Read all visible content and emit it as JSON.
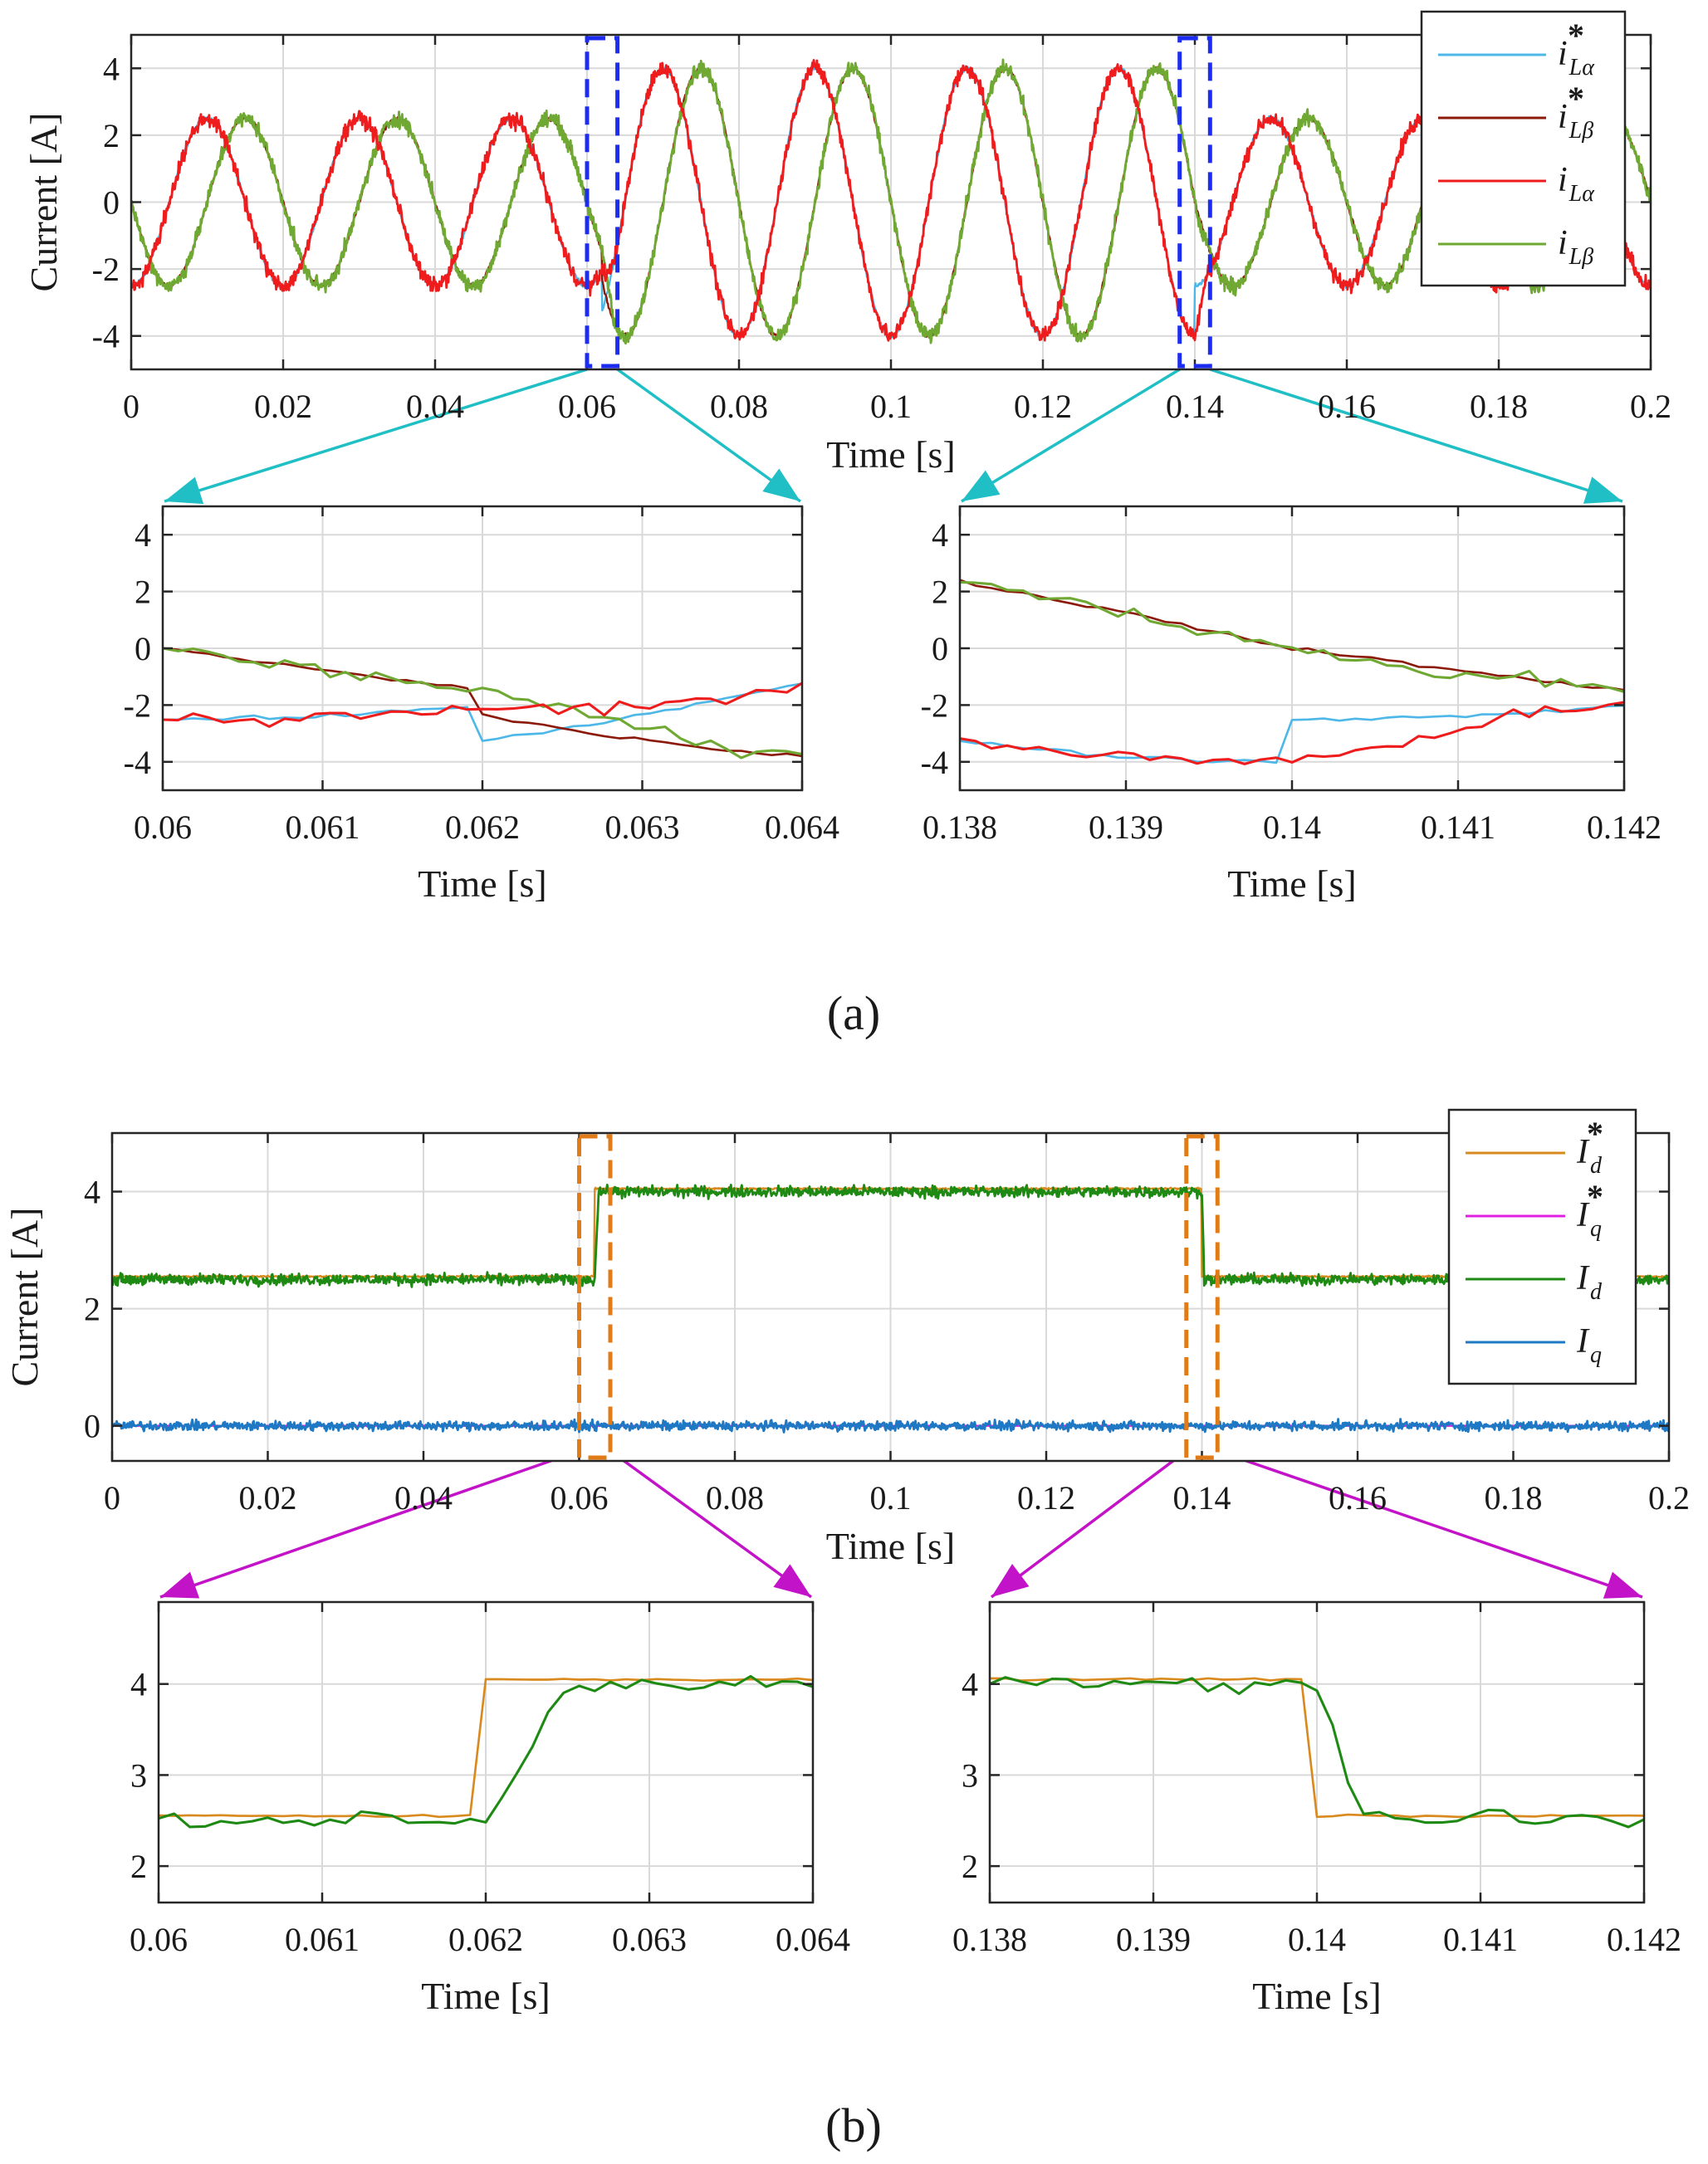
{
  "captions": {
    "a": "(a)",
    "b": "(b)"
  },
  "chart_data": [
    {
      "id": "a-main",
      "type": "line",
      "title": "",
      "xlabel": "Time [s]",
      "ylabel": "Current [A]",
      "xlim": [
        0,
        0.2
      ],
      "ylim": [
        -5,
        5
      ],
      "xticks": [
        0,
        0.02,
        0.04,
        0.06,
        0.08,
        0.1,
        0.12,
        0.14,
        0.16,
        0.18,
        0.2
      ],
      "xtick_labels": [
        "0",
        "0.02",
        "0.04",
        "0.06",
        "0.08",
        "0.1",
        "0.12",
        "0.14",
        "0.16",
        "0.18",
        "0.2"
      ],
      "yticks": [
        -4,
        -2,
        0,
        2,
        4
      ],
      "ytick_labels": [
        "-4",
        "-2",
        "0",
        "2",
        "4"
      ],
      "grid": true,
      "legend_position": "top-right",
      "series": [
        {
          "name": "i*Lα",
          "symbol": "i",
          "sub": "Lα",
          "sup": "*",
          "color": "#4db8e8",
          "frequency_hz": 50,
          "amplitude_before": 2.5,
          "amplitude_mid": 4.0,
          "amplitude_after": 2.5,
          "phase_deg": -90,
          "noise": 0.1
        },
        {
          "name": "i*Lβ",
          "symbol": "i",
          "sub": "Lβ",
          "sup": "*",
          "color": "#8b1a0a",
          "frequency_hz": 50,
          "amplitude_before": 2.5,
          "amplitude_mid": 4.0,
          "amplitude_after": 2.5,
          "phase_deg": -180,
          "noise": 0.1
        },
        {
          "name": "iLα",
          "symbol": "i",
          "sub": "Lα",
          "sup": "",
          "color": "#ee1c1c",
          "frequency_hz": 50,
          "amplitude_before": 2.5,
          "amplitude_mid": 4.0,
          "amplitude_after": 2.5,
          "phase_deg": -90,
          "noise": 0.35
        },
        {
          "name": "iLβ",
          "symbol": "i",
          "sub": "Lβ",
          "sup": "",
          "color": "#6fa832",
          "frequency_hz": 50,
          "amplitude_before": 2.5,
          "amplitude_mid": 4.0,
          "amplitude_after": 2.5,
          "phase_deg": -180,
          "noise": 0.35
        }
      ],
      "step_times": [
        0.062,
        0.14
      ],
      "zoom_windows": [
        [
          0.06,
          0.064
        ],
        [
          0.138,
          0.142
        ]
      ]
    },
    {
      "id": "a-zoom1",
      "type": "line",
      "xlabel": "Time [s]",
      "xlim": [
        0.06,
        0.064
      ],
      "ylim": [
        -5,
        5
      ],
      "xticks": [
        0.06,
        0.061,
        0.062,
        0.063,
        0.064
      ],
      "xtick_labels": [
        "0.06",
        "0.061",
        "0.062",
        "0.063",
        "0.064"
      ],
      "yticks": [
        -4,
        -2,
        0,
        2,
        4
      ],
      "ytick_labels": [
        "-4",
        "-2",
        "0",
        "2",
        "4"
      ],
      "grid": true
    },
    {
      "id": "a-zoom2",
      "type": "line",
      "xlabel": "Time [s]",
      "xlim": [
        0.138,
        0.142
      ],
      "ylim": [
        -5,
        5
      ],
      "xticks": [
        0.138,
        0.139,
        0.14,
        0.141,
        0.142
      ],
      "xtick_labels": [
        "0.138",
        "0.139",
        "0.14",
        "0.141",
        "0.142"
      ],
      "yticks": [
        -4,
        -2,
        0,
        2,
        4
      ],
      "ytick_labels": [
        "-4",
        "-2",
        "0",
        "2",
        "4"
      ],
      "grid": true
    },
    {
      "id": "b-main",
      "type": "line",
      "xlabel": "Time [s]",
      "ylabel": "Current [A]",
      "xlim": [
        0,
        0.2
      ],
      "ylim": [
        -0.6,
        5
      ],
      "xticks": [
        0,
        0.02,
        0.04,
        0.06,
        0.08,
        0.1,
        0.12,
        0.14,
        0.16,
        0.18,
        0.2
      ],
      "xtick_labels": [
        "0",
        "0.02",
        "0.04",
        "0.06",
        "0.08",
        "0.1",
        "0.12",
        "0.14",
        "0.16",
        "0.18",
        "0.2"
      ],
      "yticks": [
        0,
        2,
        4
      ],
      "ytick_labels": [
        "0",
        "2",
        "4"
      ],
      "grid": true,
      "legend_position": "top-right",
      "series": [
        {
          "name": "I*d",
          "symbol": "I",
          "sub": "d",
          "sup": "*",
          "color": "#d98a1e",
          "level_before": 2.55,
          "level_mid": 4.05,
          "level_after": 2.55,
          "noise": 0.02
        },
        {
          "name": "I*q",
          "symbol": "I",
          "sub": "q",
          "sup": "*",
          "color": "#e020e0",
          "level_before": 0,
          "level_mid": 0,
          "level_after": 0,
          "noise": 0.0
        },
        {
          "name": "Id",
          "symbol": "I",
          "sub": "d",
          "sup": "",
          "color": "#1e8a14",
          "level_before": 2.5,
          "level_mid": 4.0,
          "level_after": 2.5,
          "noise": 0.14
        },
        {
          "name": "Iq",
          "symbol": "I",
          "sub": "q",
          "sup": "",
          "color": "#1f78c4",
          "level_before": 0,
          "level_mid": 0,
          "level_after": 0,
          "noise": 0.12
        }
      ],
      "step_times": [
        0.062,
        0.14
      ],
      "zoom_windows": [
        [
          0.06,
          0.064
        ],
        [
          0.138,
          0.142
        ]
      ]
    },
    {
      "id": "b-zoom1",
      "type": "line",
      "xlabel": "Time [s]",
      "xlim": [
        0.06,
        0.064
      ],
      "ylim": [
        1.6,
        4.9
      ],
      "xticks": [
        0.06,
        0.061,
        0.062,
        0.063,
        0.064
      ],
      "xtick_labels": [
        "0.06",
        "0.061",
        "0.062",
        "0.063",
        "0.064"
      ],
      "yticks": [
        2,
        3,
        4
      ],
      "ytick_labels": [
        "2",
        "3",
        "4"
      ],
      "grid": true
    },
    {
      "id": "b-zoom2",
      "type": "line",
      "xlabel": "Time [s]",
      "xlim": [
        0.138,
        0.142
      ],
      "ylim": [
        1.6,
        4.9
      ],
      "xticks": [
        0.138,
        0.139,
        0.14,
        0.141,
        0.142
      ],
      "xtick_labels": [
        "0.138",
        "0.139",
        "0.14",
        "0.141",
        "0.142"
      ],
      "yticks": [
        2,
        3,
        4
      ],
      "ytick_labels": [
        "2",
        "3",
        "4"
      ],
      "grid": true
    }
  ]
}
